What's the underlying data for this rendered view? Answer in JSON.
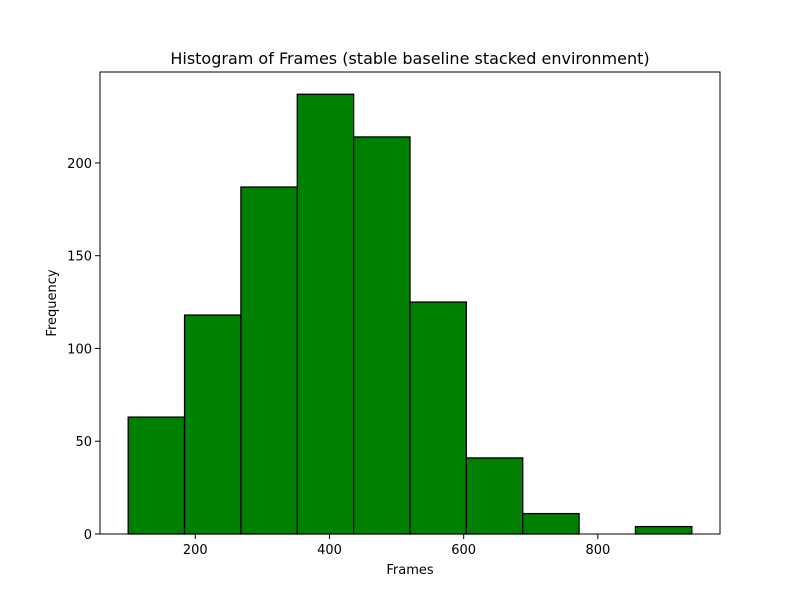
{
  "chart_data": {
    "type": "bar",
    "title": "Histogram of Frames (stable baseline stacked environment)",
    "xlabel": "Frames",
    "ylabel": "Frequency",
    "bin_edges": [
      100,
      184,
      268,
      352,
      436,
      520,
      604,
      688,
      772,
      856,
      940
    ],
    "values": [
      63,
      118,
      187,
      237,
      214,
      125,
      41,
      11,
      0,
      4
    ],
    "xlim": [
      58,
      982
    ],
    "ylim": [
      0,
      249
    ],
    "xticks": [
      200,
      400,
      600,
      800
    ],
    "yticks": [
      0,
      50,
      100,
      150,
      200
    ],
    "grid": false,
    "bar_color": "#008000",
    "edge_color": "#000000"
  }
}
